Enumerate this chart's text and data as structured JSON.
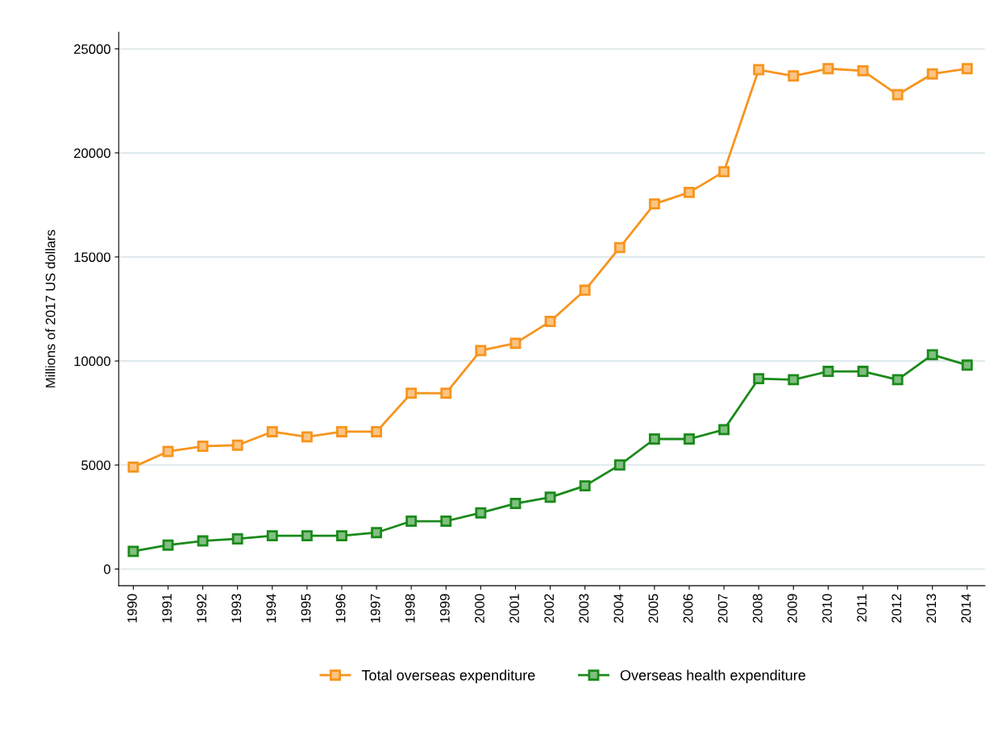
{
  "chart_data": {
    "type": "line",
    "ylabel": "Millions of 2017 US dollars",
    "categories": [
      "1990",
      "1991",
      "1992",
      "1993",
      "1994",
      "1995",
      "1996",
      "1997",
      "1998",
      "1999",
      "2000",
      "2001",
      "2002",
      "2003",
      "2004",
      "2005",
      "2006",
      "2007",
      "2008",
      "2009",
      "2010",
      "2011",
      "2012",
      "2013",
      "2014"
    ],
    "series": [
      {
        "name": "Total overseas expenditure",
        "color": "#f7941d",
        "values": [
          4900,
          5650,
          5900,
          5950,
          6600,
          6350,
          6600,
          6600,
          8450,
          8450,
          10500,
          10850,
          11900,
          13400,
          15450,
          17550,
          18100,
          19100,
          24000,
          23700,
          24050,
          23950,
          22800,
          23800,
          24050
        ]
      },
      {
        "name": "Overseas health expenditure",
        "color": "#1a8a1a",
        "values": [
          850,
          1150,
          1350,
          1450,
          1600,
          1600,
          1600,
          1750,
          2300,
          2300,
          2700,
          3150,
          3450,
          4000,
          5000,
          6250,
          6250,
          6700,
          9150,
          9100,
          9500,
          9500,
          9100,
          10300,
          9800
        ]
      }
    ],
    "ylim": [
      -800,
      25800
    ],
    "yticks": [
      0,
      5000,
      10000,
      15000,
      20000,
      25000
    ],
    "grid": "y",
    "legend": "bottom",
    "marker": "square",
    "line_style": "solid"
  }
}
